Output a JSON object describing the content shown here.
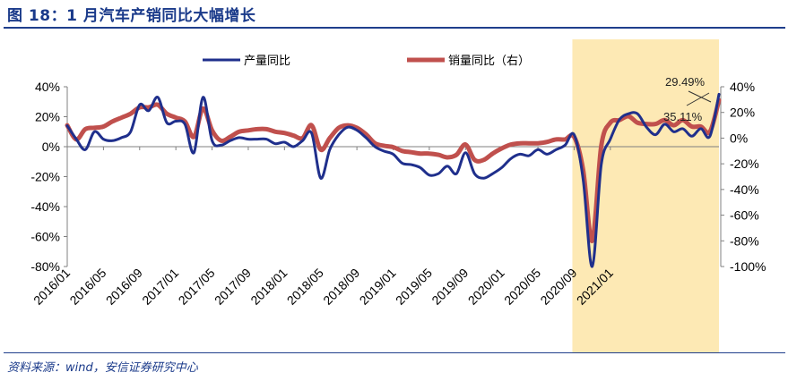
{
  "title": "图 18：1 月汽车产销同比大幅增长",
  "source": "资料来源：wind，安信证券研究中心",
  "chart_data": {
    "type": "line",
    "legend_position": "top",
    "grid": false,
    "x_ticks": [
      "2016/01",
      "2016/05",
      "2016/09",
      "2017/01",
      "2017/05",
      "2017/09",
      "2018/01",
      "2018/05",
      "2018/09",
      "2019/01",
      "2019/05",
      "2019/09",
      "2020/01",
      "2020/05",
      "2020/09",
      "2021/01"
    ],
    "y_left": {
      "ticks": [
        "40%",
        "20%",
        "0%",
        "-20%",
        "-40%",
        "-60%",
        "-80%"
      ],
      "range": [
        -80,
        40
      ]
    },
    "y_right": {
      "ticks": [
        "40%",
        "20%",
        "0%",
        "-20%",
        "-40%",
        "-60%",
        "-80%",
        "-100%"
      ],
      "range": [
        -100,
        40
      ]
    },
    "highlight": {
      "from": "2020/09",
      "to": "2021/01",
      "color": "#fde9b4"
    },
    "series": [
      {
        "name": "产量同比",
        "axis": "left",
        "color": "#1f2f8c",
        "values": [
          14,
          5,
          -2,
          10,
          5,
          4,
          6,
          10,
          28,
          24,
          33,
          16,
          17,
          15,
          -4,
          33,
          4,
          1,
          4,
          6,
          5,
          5,
          5,
          2,
          3,
          0,
          4,
          9,
          -21,
          -2,
          8,
          13,
          11,
          6,
          0,
          -3,
          -5,
          -11,
          -12,
          -14,
          -19,
          -18,
          -13,
          -18,
          -4,
          -18,
          -21,
          -18,
          -14,
          -8,
          -5,
          -6,
          -2,
          -5,
          -2,
          1,
          8,
          -22,
          -80,
          -12,
          5,
          18,
          22,
          22,
          13,
          8,
          15,
          10,
          12,
          7,
          12,
          7,
          35
        ],
        "y_axis_index": 0
      },
      {
        "name": "销量同比（右）",
        "axis": "right",
        "color": "#c0504d",
        "values": [
          10,
          -1,
          7,
          8,
          9,
          13,
          16,
          19,
          24,
          24,
          26,
          19,
          16,
          13,
          1,
          23,
          6,
          -2,
          1,
          5,
          6,
          7,
          7,
          5,
          4,
          2,
          0,
          10,
          -9,
          0,
          8,
          10,
          8,
          3,
          -4,
          -6,
          -7,
          -10,
          -11,
          -12,
          -12,
          -13,
          -15,
          -13,
          -5,
          -17,
          -17,
          -12,
          -8,
          -5,
          -4,
          -4,
          -4,
          -3,
          -1,
          -1,
          1,
          -25,
          -80,
          -6,
          12,
          14,
          17,
          12,
          11,
          11,
          14,
          10,
          14,
          9,
          9,
          5,
          29.49
        ],
        "y_axis_index": 1
      }
    ],
    "annotations": [
      {
        "text": "29.49%",
        "series": "销量同比（右）",
        "at": "2021/01"
      },
      {
        "text": "35.11%",
        "series": "产量同比",
        "at": "2021/01"
      }
    ]
  }
}
